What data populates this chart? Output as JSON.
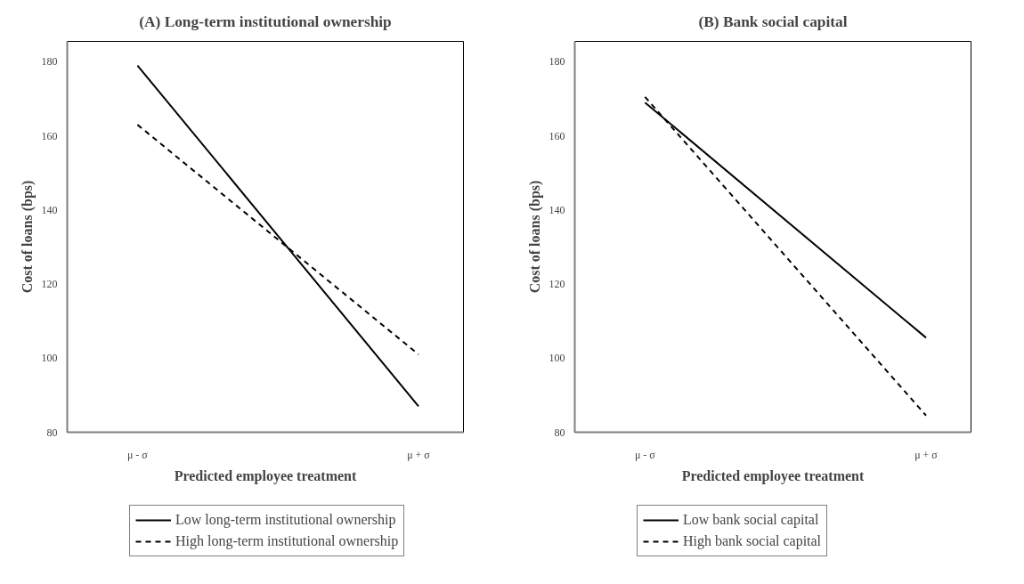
{
  "chart_data": [
    {
      "type": "line",
      "title": "(A) Long-term institutional ownership",
      "xlabel": "Predicted employee treatment",
      "ylabel": "Cost of loans (bps)",
      "categories": [
        "μ - σ",
        "μ + σ"
      ],
      "series": [
        {
          "name": "Low long-term institutional ownership",
          "color": "#000000",
          "line_style": "solid",
          "values": [
            179,
            87
          ]
        },
        {
          "name": "High long-term institutional ownership",
          "color": "#000000",
          "line_style": "dashed",
          "values": [
            163,
            101
          ]
        }
      ],
      "ylim": [
        80,
        185.5
      ],
      "yticks": [
        80,
        100,
        120,
        140,
        160,
        180
      ],
      "grid": false,
      "legend": "bottom",
      "marker": "none"
    },
    {
      "type": "line",
      "title": "(B) Bank social capital",
      "xlabel": "Predicted employee treatment",
      "ylabel": "Cost of loans (bps)",
      "categories": [
        "μ - σ",
        "μ + σ"
      ],
      "series": [
        {
          "name": "Low bank social capital",
          "color": "#000000",
          "line_style": "solid",
          "values": [
            169,
            105.5
          ]
        },
        {
          "name": "High bank social capital",
          "color": "#000000",
          "line_style": "dashed",
          "values": [
            170.5,
            84.5
          ]
        }
      ],
      "ylim": [
        80,
        185.5
      ],
      "yticks": [
        80,
        100,
        120,
        140,
        160,
        180
      ],
      "grid": false,
      "legend": "bottom",
      "marker": "none"
    }
  ]
}
